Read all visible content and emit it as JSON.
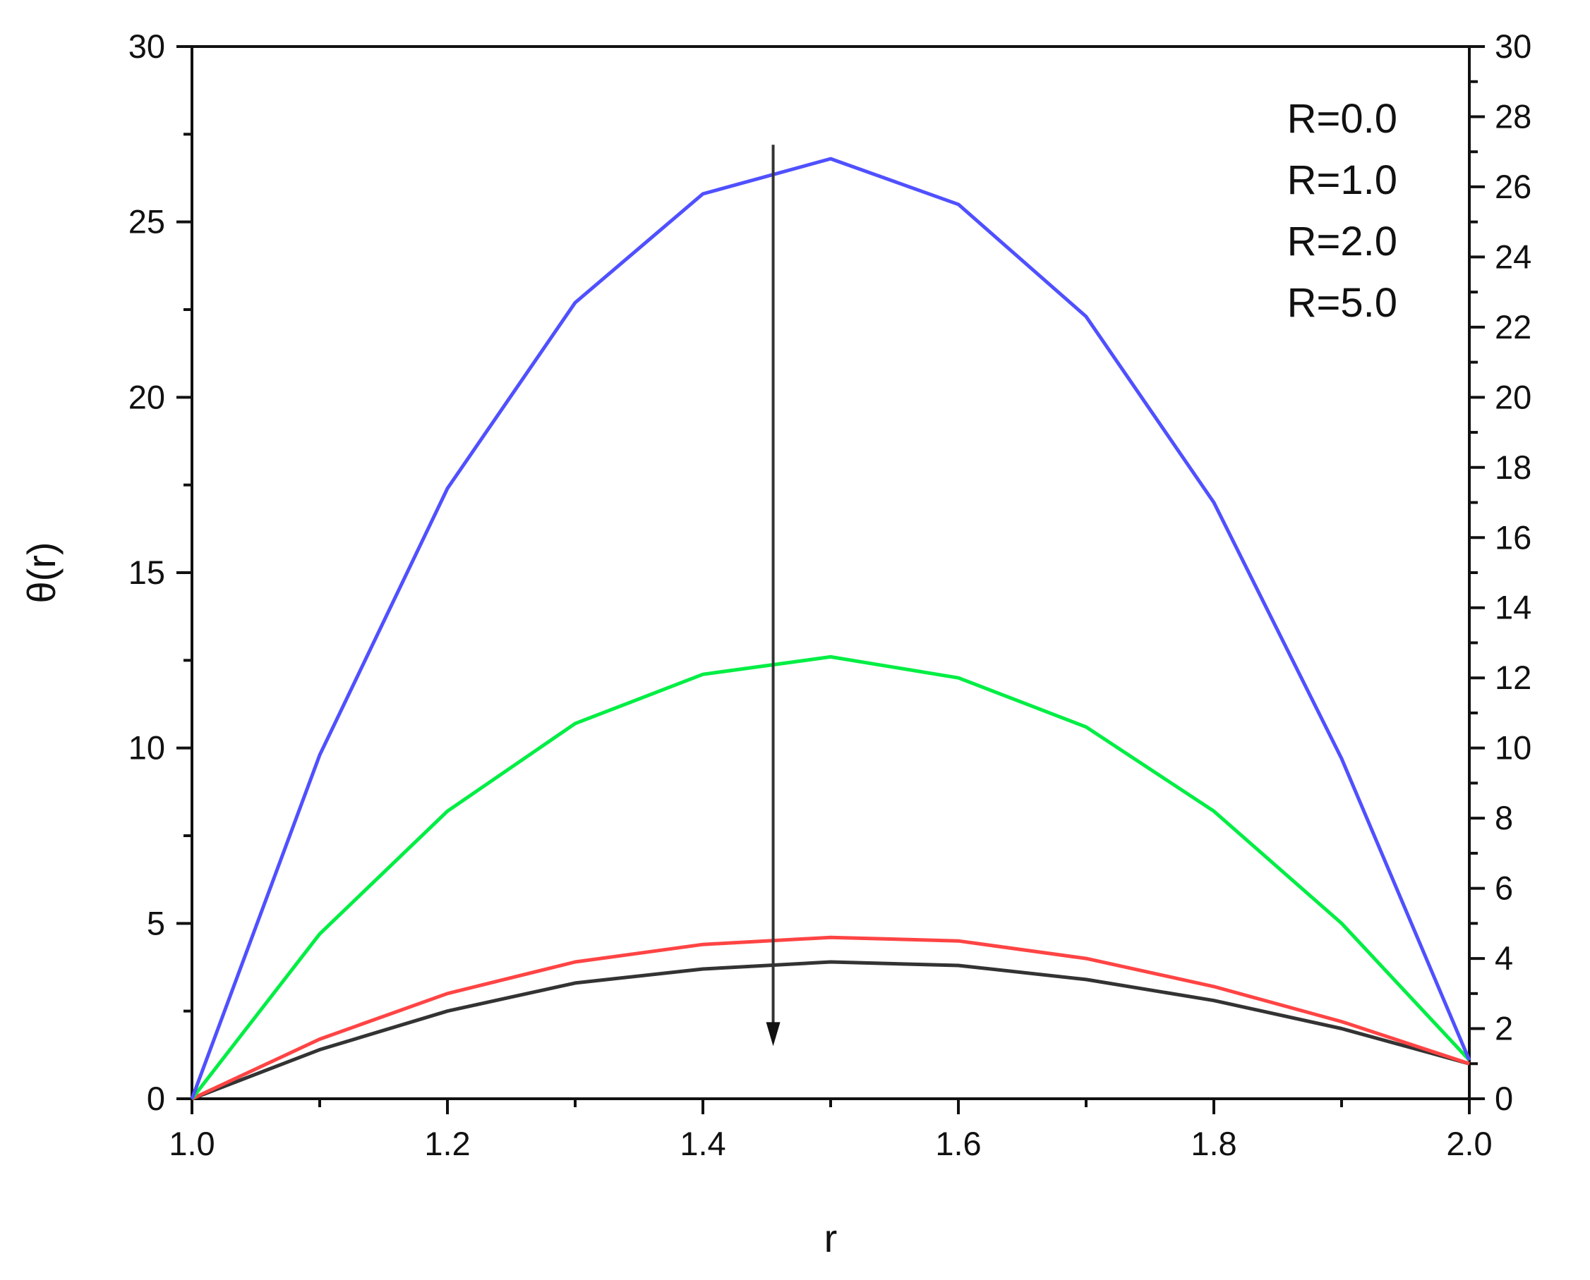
{
  "chart_data": {
    "type": "line",
    "xlabel": "r",
    "ylabel": "θ(r)",
    "xlim": [
      1.0,
      2.0
    ],
    "ylim": [
      0,
      30
    ],
    "y2lim": [
      0,
      30
    ],
    "grid": false,
    "legend_position": "top-right",
    "x_ticks": [
      "1.0",
      "1.2",
      "1.4",
      "1.6",
      "1.8",
      "2.0"
    ],
    "y_ticks": [
      "0",
      "5",
      "10",
      "15",
      "20",
      "25",
      "30"
    ],
    "y2_ticks": [
      "0",
      "2",
      "4",
      "6",
      "8",
      "10",
      "12",
      "14",
      "16",
      "18",
      "20",
      "22",
      "24",
      "26",
      "28",
      "30"
    ],
    "x": [
      1.0,
      1.1,
      1.2,
      1.3,
      1.4,
      1.5,
      1.6,
      1.7,
      1.8,
      1.9,
      2.0
    ],
    "series": [
      {
        "name": "R=0.0",
        "color": "#5050ff",
        "values": [
          0.0,
          9.8,
          17.4,
          22.7,
          25.8,
          26.8,
          25.5,
          22.3,
          17.0,
          9.7,
          1.1
        ]
      },
      {
        "name": "R=1.0",
        "color": "#00ee44",
        "values": [
          0.0,
          4.7,
          8.2,
          10.7,
          12.1,
          12.6,
          12.0,
          10.6,
          8.2,
          5.0,
          1.1
        ]
      },
      {
        "name": "R=2.0",
        "color": "#ff4444",
        "values": [
          0.0,
          1.7,
          3.0,
          3.9,
          4.4,
          4.6,
          4.5,
          4.0,
          3.2,
          2.2,
          1.0
        ]
      },
      {
        "name": "R=5.0",
        "color": "#333333",
        "values": [
          0.0,
          1.4,
          2.5,
          3.3,
          3.7,
          3.9,
          3.8,
          3.4,
          2.8,
          2.0,
          1.0
        ]
      }
    ],
    "annotation": {
      "type": "arrow",
      "x": 1.455,
      "y_from": 27.2,
      "y_to": 1.5,
      "meaning": "direction of increasing R"
    }
  }
}
